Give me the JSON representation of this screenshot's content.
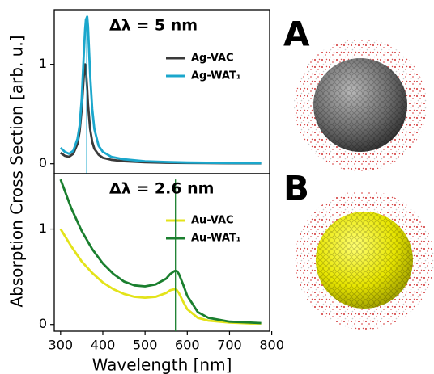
{
  "ylabel": "Absorption Cross Section [arb. u.]",
  "panels": [
    "A",
    "B"
  ],
  "chart_data": [
    {
      "type": "line",
      "annotation": "Δλ = 5 nm",
      "annotation_color": "#1ba7cc",
      "x": [
        300,
        310,
        320,
        330,
        340,
        345,
        350,
        355,
        358,
        360,
        363,
        365,
        370,
        375,
        380,
        390,
        400,
        420,
        450,
        500,
        550,
        600,
        700,
        775
      ],
      "series": [
        {
          "name": "Ag-VAC",
          "color": "#3a3a3a",
          "values": [
            0.11,
            0.08,
            0.07,
            0.1,
            0.2,
            0.32,
            0.55,
            0.88,
            1.0,
            0.95,
            0.75,
            0.6,
            0.35,
            0.22,
            0.15,
            0.09,
            0.06,
            0.04,
            0.025,
            0.015,
            0.01,
            0.008,
            0.005,
            0.004
          ]
        },
        {
          "name": "Ag-WAT₁",
          "color": "#1ba7cc",
          "values": [
            0.16,
            0.12,
            0.1,
            0.13,
            0.25,
            0.38,
            0.65,
            1.1,
            1.35,
            1.45,
            1.48,
            1.38,
            0.9,
            0.55,
            0.35,
            0.18,
            0.12,
            0.07,
            0.045,
            0.025,
            0.018,
            0.012,
            0.008,
            0.006
          ]
        }
      ],
      "vline": 362,
      "xlim": [
        285,
        795
      ],
      "ylim": [
        -0.1,
        1.55
      ],
      "yticks": [
        0,
        1
      ]
    },
    {
      "type": "line",
      "annotation": "Δλ = 2.6 nm",
      "annotation_color": "#1a8a2e",
      "x": [
        300,
        325,
        350,
        375,
        400,
        425,
        450,
        475,
        500,
        525,
        550,
        560,
        570,
        575,
        580,
        590,
        600,
        625,
        650,
        700,
        750,
        775
      ],
      "series": [
        {
          "name": "Au-VAC",
          "color": "#e3e31a",
          "values": [
            1.0,
            0.82,
            0.66,
            0.54,
            0.44,
            0.37,
            0.32,
            0.29,
            0.28,
            0.29,
            0.33,
            0.36,
            0.37,
            0.36,
            0.33,
            0.24,
            0.16,
            0.07,
            0.04,
            0.02,
            0.01,
            0.01
          ]
        },
        {
          "name": "Au-WAT₁",
          "color": "#1a7f2e",
          "values": [
            1.52,
            1.22,
            0.98,
            0.79,
            0.64,
            0.53,
            0.45,
            0.41,
            0.4,
            0.42,
            0.48,
            0.53,
            0.56,
            0.56,
            0.53,
            0.42,
            0.3,
            0.13,
            0.07,
            0.03,
            0.02,
            0.015
          ]
        }
      ],
      "vline": 572,
      "xlim": [
        285,
        795
      ],
      "ylim": [
        -0.07,
        1.58
      ],
      "yticks": [
        0,
        1
      ],
      "xticks": [
        300,
        400,
        500,
        600,
        700,
        800
      ],
      "xlabel": "Wavelength [nm]"
    }
  ]
}
